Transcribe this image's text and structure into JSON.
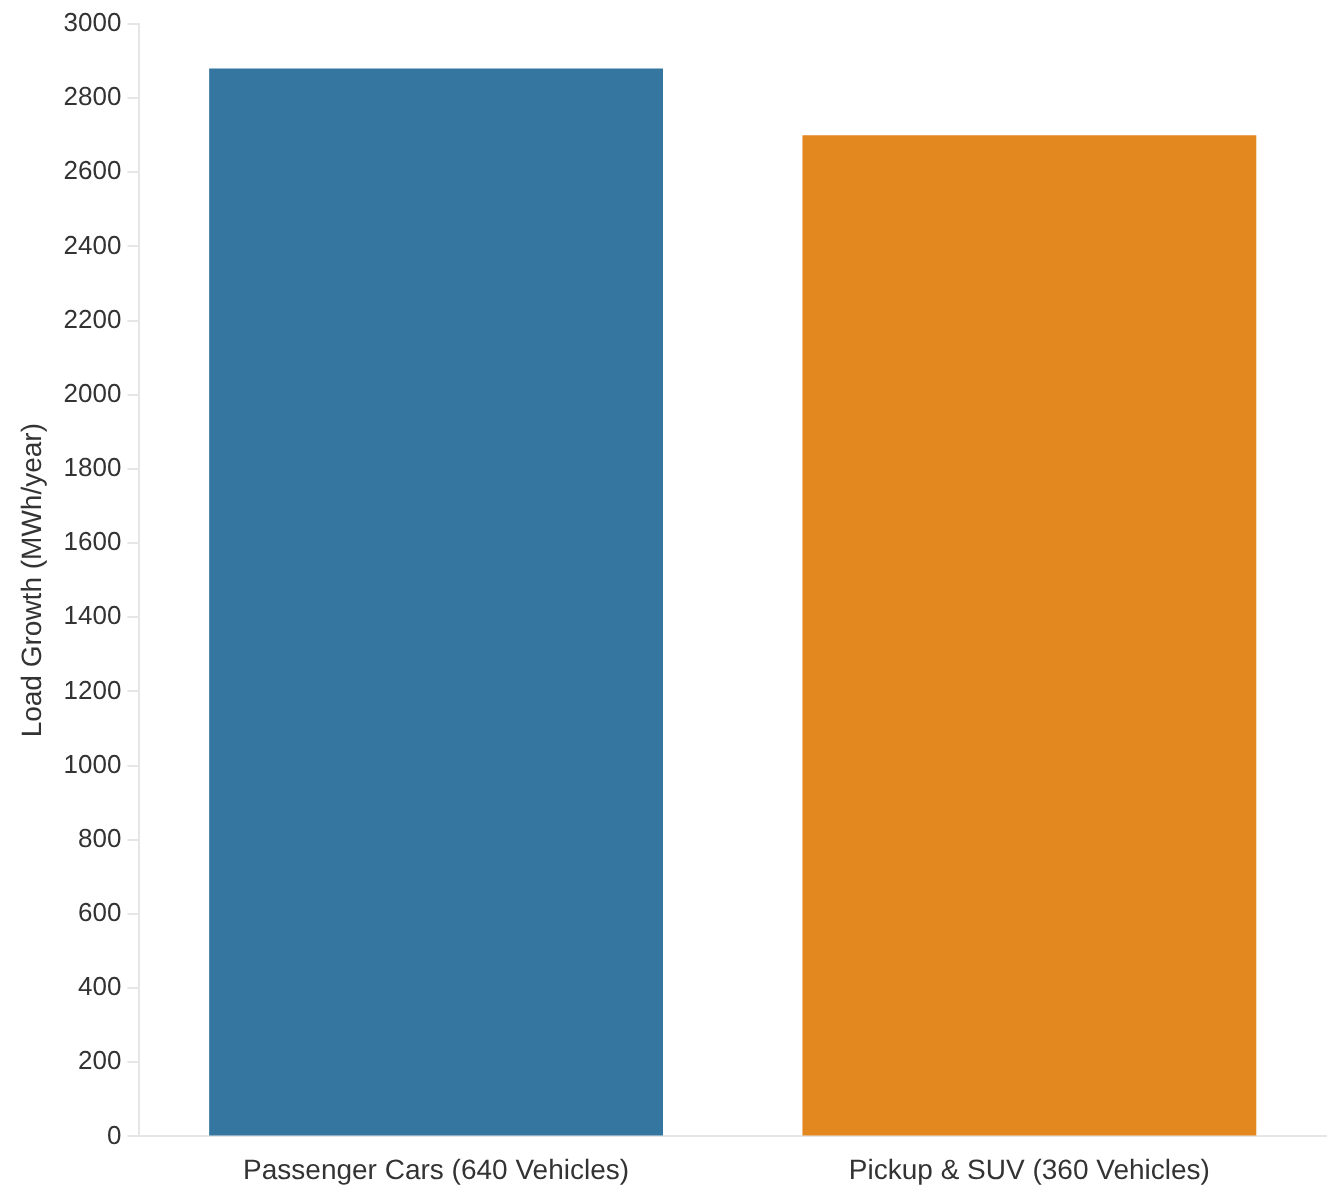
{
  "chart_data": {
    "type": "bar",
    "ylabel": "Load Growth (MWh/year)",
    "categories": [
      "Passenger Cars (640 Vehicles)",
      "Pickup & SUV (360 Vehicles)"
    ],
    "values": [
      2880,
      2700
    ],
    "colors": [
      "#34769f",
      "#e3881f"
    ],
    "ylim": [
      0,
      3000
    ],
    "yticks": [
      0,
      200,
      400,
      600,
      800,
      1000,
      1200,
      1400,
      1600,
      1800,
      2000,
      2200,
      2400,
      2600,
      2800,
      3000
    ],
    "grid": false,
    "legend": false
  }
}
